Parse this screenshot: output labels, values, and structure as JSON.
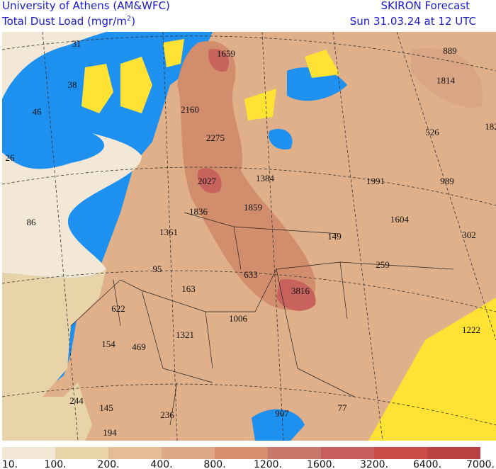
{
  "header": {
    "institution": "University of Athens (AM&WFC)",
    "product": "Total Dust Load (mgr/m",
    "product_superscript": "2",
    "product_close": ")",
    "forecast": "SKIRON Forecast",
    "valid_time": "Sun 31.03.24 at 12 UTC"
  },
  "map": {
    "labels": [
      "31",
      "1659",
      "889",
      "38",
      "1814",
      "46",
      "2160",
      "526",
      "182",
      "2275",
      "26",
      "1384",
      "1991",
      "989",
      "2027",
      "1836",
      "1859",
      "86",
      "1361",
      "1604",
      "149",
      "302",
      "95",
      "633",
      "259",
      "163",
      "3816",
      "622",
      "1006",
      "1222",
      "1321",
      "154",
      "469",
      "244",
      "145",
      "236",
      "907",
      "77",
      "194"
    ]
  },
  "colorbar": {
    "colors": [
      "#f2e8d5",
      "#e9d3a8",
      "#e5bc93",
      "#dcaa86",
      "#d98f6d",
      "#c9786c",
      "#c65f5c",
      "#cc4c4a",
      "#ba4141"
    ],
    "labels": [
      "10.",
      "100.",
      "200.",
      "400.",
      "800.",
      "1200.",
      "1600.",
      "3200.",
      "6400.",
      "7000."
    ]
  }
}
